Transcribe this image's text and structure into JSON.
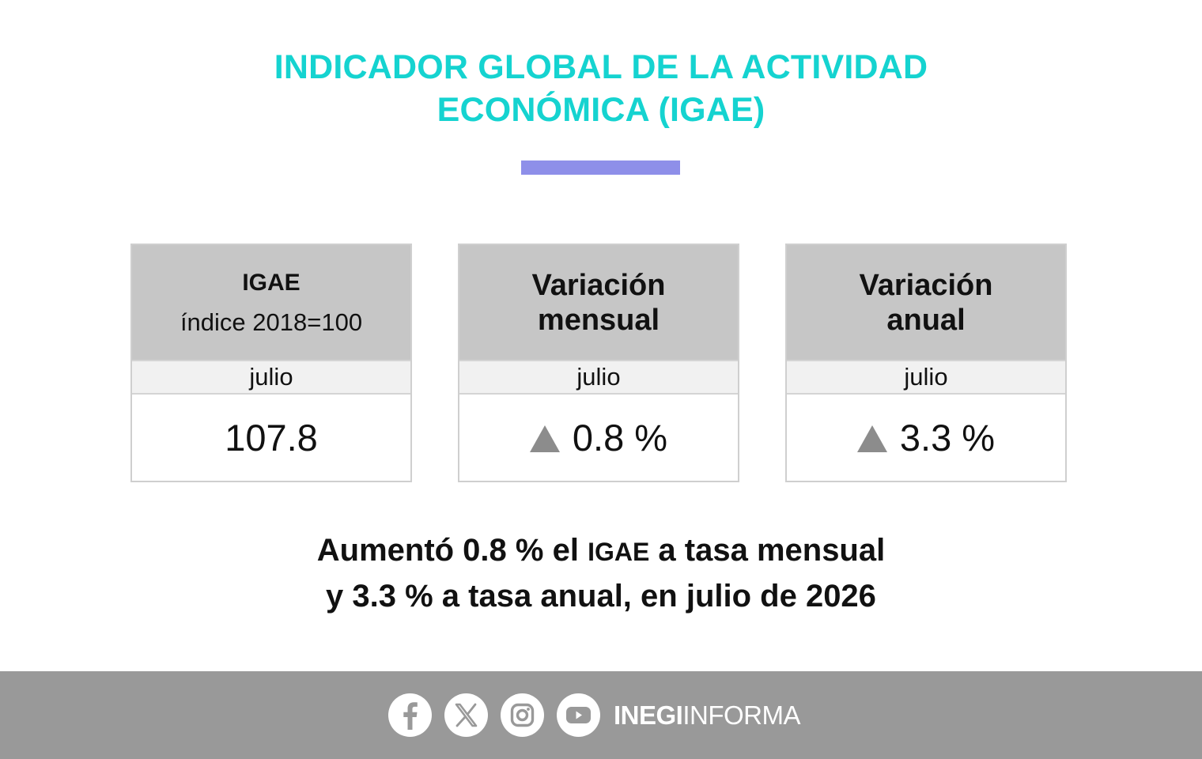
{
  "title": {
    "line1": "INDICADOR GLOBAL DE LA ACTIVIDAD",
    "line2": "ECONÓMICA (IGAE)"
  },
  "colors": {
    "title": "#15d3d0",
    "accent_bar": "#8e8fe9",
    "header_bg": "#c6c6c6",
    "month_bg": "#f1f1f1",
    "footer_bg": "#999999",
    "arrow": "#8c8c8c"
  },
  "cards": [
    {
      "title": "IGAE",
      "subtitle": "índice 2018=100",
      "month": "julio",
      "value": "107.8"
    },
    {
      "title_line1": "Variación",
      "title_line2": "mensual",
      "month": "julio",
      "value": "0.8 %",
      "trend_icon": "up-triangle-icon"
    },
    {
      "title_line1": "Variación",
      "title_line2": "anual",
      "month": "julio",
      "value": "3.3 %",
      "trend_icon": "up-triangle-icon"
    }
  ],
  "headline": {
    "line1_a": "Aumentó 0.8 % el ",
    "line1_b": "IGAE",
    "line1_c": " a tasa mensual",
    "line2": "y 3.3 % a tasa anual, en julio de 2026"
  },
  "footer": {
    "icons": [
      "facebook-icon",
      "x-icon",
      "instagram-icon",
      "youtube-icon"
    ],
    "brand_bold": "INEGI",
    "brand_regular": "INFORMA"
  }
}
